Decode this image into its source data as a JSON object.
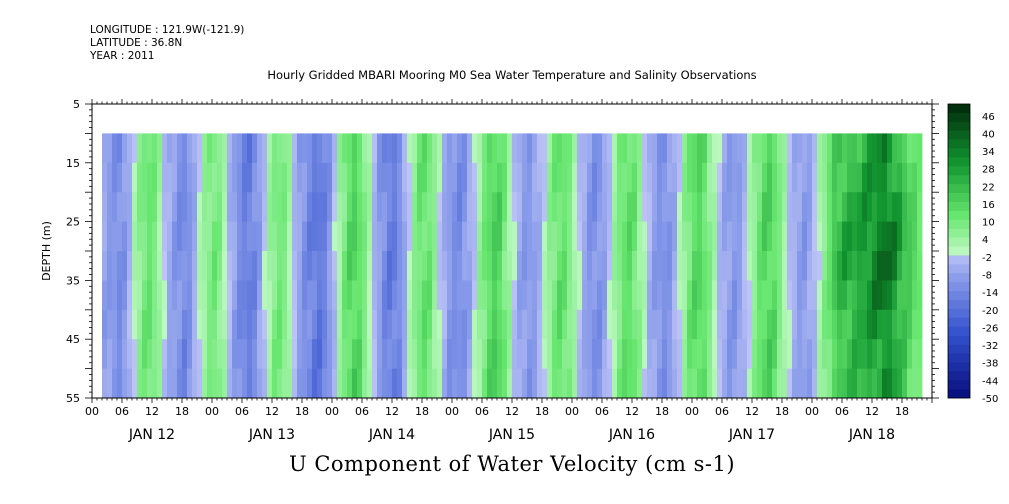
{
  "header": {
    "longitude": "LONGITUDE : 121.9W(-121.9)",
    "latitude": "LATITUDE : 36.8N",
    "year": "YEAR : 2011"
  },
  "plot_title": "Hourly Gridded MBARI Mooring M0 Sea Water Temperature and Salinity Observations",
  "main_title": "U Component of Water Velocity (cm s-1)",
  "chart_data": {
    "type": "heatmap",
    "title": "U Component of Water Velocity (cm s-1)",
    "subtitle": "Hourly Gridded MBARI Mooring M0 Sea Water Temperature and Salinity Observations",
    "ylabel": "DEPTH (m)",
    "xlabel": "",
    "y_range": [
      5,
      55
    ],
    "y_inverted": true,
    "y_ticks": [
      "5",
      "15",
      "25",
      "35",
      "45",
      "55"
    ],
    "data_depth_range": [
      10,
      55
    ],
    "x_hour_labels": [
      "00",
      "06",
      "12",
      "18",
      "00",
      "06",
      "12",
      "18",
      "00",
      "06",
      "12",
      "18",
      "00",
      "06",
      "12",
      "18",
      "00",
      "06",
      "12",
      "18",
      "00",
      "06",
      "12",
      "18",
      "00",
      "06",
      "12",
      "18"
    ],
    "x_day_labels": [
      "JAN 12",
      "JAN 13",
      "JAN 14",
      "JAN 15",
      "JAN 16",
      "JAN 17",
      "JAN 18"
    ],
    "data_start_hour": 2,
    "data_end_hour": 164,
    "u_by_hour": [
      -8,
      -10,
      -12,
      -14,
      -11,
      -5,
      2,
      8,
      12,
      14,
      11,
      5,
      -2,
      -7,
      -10,
      -13,
      -15,
      -12,
      -6,
      1,
      6,
      10,
      12,
      9,
      3,
      -4,
      -9,
      -14,
      -17,
      -18,
      -15,
      -9,
      -2,
      5,
      10,
      12,
      10,
      4,
      -3,
      -9,
      -13,
      -16,
      -19,
      -20,
      -17,
      -11,
      -3,
      5,
      12,
      17,
      19,
      16,
      10,
      3,
      -4,
      -10,
      -15,
      -18,
      -18,
      -14,
      -7,
      1,
      8,
      13,
      15,
      13,
      7,
      0,
      -6,
      -11,
      -13,
      -14,
      -12,
      -7,
      -1,
      6,
      12,
      17,
      20,
      18,
      12,
      5,
      -2,
      -7,
      -10,
      -11,
      -9,
      -5,
      1,
      7,
      12,
      15,
      14,
      10,
      4,
      -2,
      -7,
      -11,
      -13,
      -12,
      -8,
      -2,
      5,
      11,
      15,
      16,
      13,
      7,
      1,
      -5,
      -9,
      -12,
      -13,
      -11,
      -6,
      0,
      7,
      13,
      17,
      18,
      15,
      9,
      3,
      -3,
      -7,
      -10,
      -11,
      -9,
      -4,
      2,
      8,
      14,
      18,
      19,
      16,
      10,
      4,
      -2,
      -6,
      -9,
      -10,
      -8,
      -3,
      3,
      9,
      14,
      18,
      21,
      23,
      24,
      25,
      26,
      28,
      30,
      32,
      34,
      36,
      34,
      30,
      25,
      20,
      16,
      13,
      10
    ],
    "colorbar": {
      "labels": [
        "46",
        "40",
        "34",
        "28",
        "22",
        "16",
        "10",
        "4",
        "-2",
        "-8",
        "-14",
        "-20",
        "-26",
        "-32",
        "-38",
        "-44",
        "-50"
      ],
      "min": -50,
      "max": 50,
      "step": 3
    },
    "grid": false,
    "legend": "colorbar-right"
  }
}
